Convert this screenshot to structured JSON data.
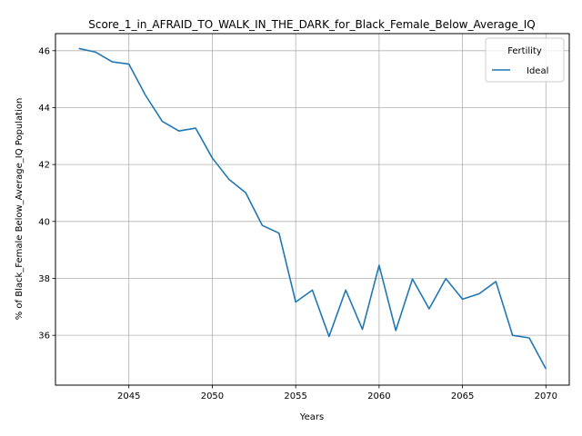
{
  "chart_data": {
    "type": "line",
    "title": "Score_1_in_AFRAID_TO_WALK_IN_THE_DARK_for_Black_Female_Below_Average_IQ",
    "xlabel": "Years",
    "ylabel": "% of Black_Female Below_Average_IQ Population",
    "xlim": [
      2040.6,
      2071.4
    ],
    "ylim": [
      34.25,
      46.6
    ],
    "xticks": [
      2045,
      2050,
      2055,
      2060,
      2065,
      2070
    ],
    "yticks": [
      36,
      38,
      40,
      42,
      44,
      46
    ],
    "grid": true,
    "legend": {
      "title": "Fertility",
      "position": "top-right"
    },
    "series": [
      {
        "name": "Ideal",
        "color": "#1f77b4",
        "x": [
          2042,
          2043,
          2044,
          2045,
          2046,
          2047,
          2048,
          2049,
          2050,
          2051,
          2052,
          2053,
          2054,
          2055,
          2056,
          2057,
          2058,
          2059,
          2060,
          2061,
          2062,
          2063,
          2064,
          2065,
          2066,
          2067,
          2068,
          2069,
          2070
        ],
        "y": [
          46.08,
          45.95,
          45.61,
          45.53,
          44.43,
          43.52,
          43.18,
          43.28,
          42.23,
          41.48,
          41.01,
          39.86,
          39.59,
          37.17,
          37.59,
          35.96,
          37.59,
          36.21,
          38.46,
          36.17,
          37.98,
          36.93,
          37.99,
          37.27,
          37.46,
          37.89,
          36.0,
          35.91,
          34.82
        ]
      }
    ]
  }
}
